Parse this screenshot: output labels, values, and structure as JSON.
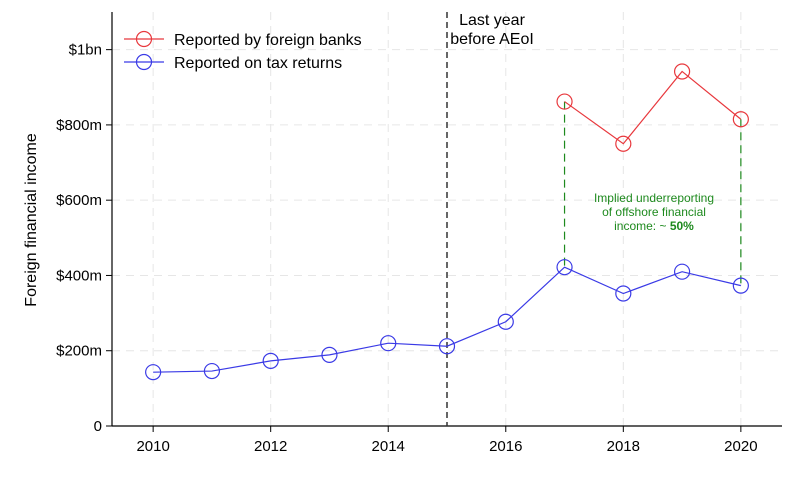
{
  "chart_data": {
    "type": "line",
    "title": "",
    "xlabel": "",
    "ylabel": "Foreign financial income",
    "xlim": [
      2009.3,
      2020.7
    ],
    "ylim": [
      0,
      1100
    ],
    "x_ticks": [
      2010,
      2012,
      2014,
      2016,
      2018,
      2020
    ],
    "x_tick_labels": [
      "2010",
      "2012",
      "2014",
      "2016",
      "2018",
      "2020"
    ],
    "y_ticks": [
      0,
      200,
      400,
      600,
      800,
      1000
    ],
    "y_tick_labels": [
      "0",
      "$200m",
      "$400m",
      "$600m",
      "$800m",
      "$1bn"
    ],
    "grid": true,
    "legend_position": "top-left",
    "series": [
      {
        "name": "Reported by foreign banks",
        "color": "#e8383d",
        "x": [
          2017,
          2018,
          2019,
          2020
        ],
        "values": [
          862,
          750,
          942,
          815
        ]
      },
      {
        "name": "Reported on tax returns",
        "color": "#3a3ae6",
        "x": [
          2010,
          2011,
          2012,
          2013,
          2014,
          2015,
          2016,
          2017,
          2018,
          2019,
          2020
        ],
        "values": [
          143,
          146,
          173,
          189,
          220,
          212,
          277,
          422,
          352,
          410,
          373
        ]
      }
    ],
    "vertical_line": {
      "x": 2015,
      "label_line1": "Last year",
      "label_line2": "before AEoI"
    },
    "gap_lines_x": [
      2017,
      2020
    ],
    "annotation": {
      "line1": "Implied underreporting",
      "line2": "of offshore financial",
      "line3_prefix": "income:  ~ ",
      "line3_bold": "50%",
      "color": "#1e8a1e"
    }
  }
}
